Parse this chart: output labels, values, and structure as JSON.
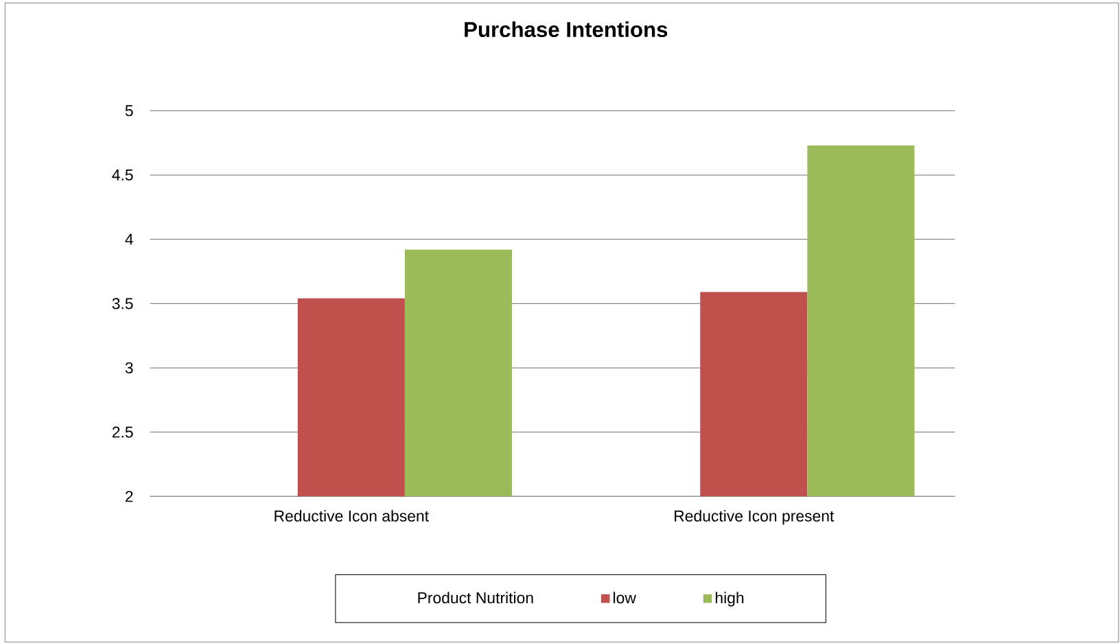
{
  "chart_data": {
    "type": "bar",
    "title": "Purchase Intentions",
    "categories": [
      "Reductive  Icon absent",
      "Reductive  Icon present"
    ],
    "series": [
      {
        "name": "low",
        "color": "#c0504d",
        "values": [
          3.54,
          3.59
        ]
      },
      {
        "name": "high",
        "color": "#9bbb59",
        "values": [
          3.92,
          4.73
        ]
      }
    ],
    "ylim": [
      2,
      5
    ],
    "yticks": [
      2,
      2.5,
      3,
      3.5,
      4,
      4.5,
      5
    ],
    "grid": "y",
    "legend": "bottom",
    "legend_title": "Product Nutrition"
  }
}
